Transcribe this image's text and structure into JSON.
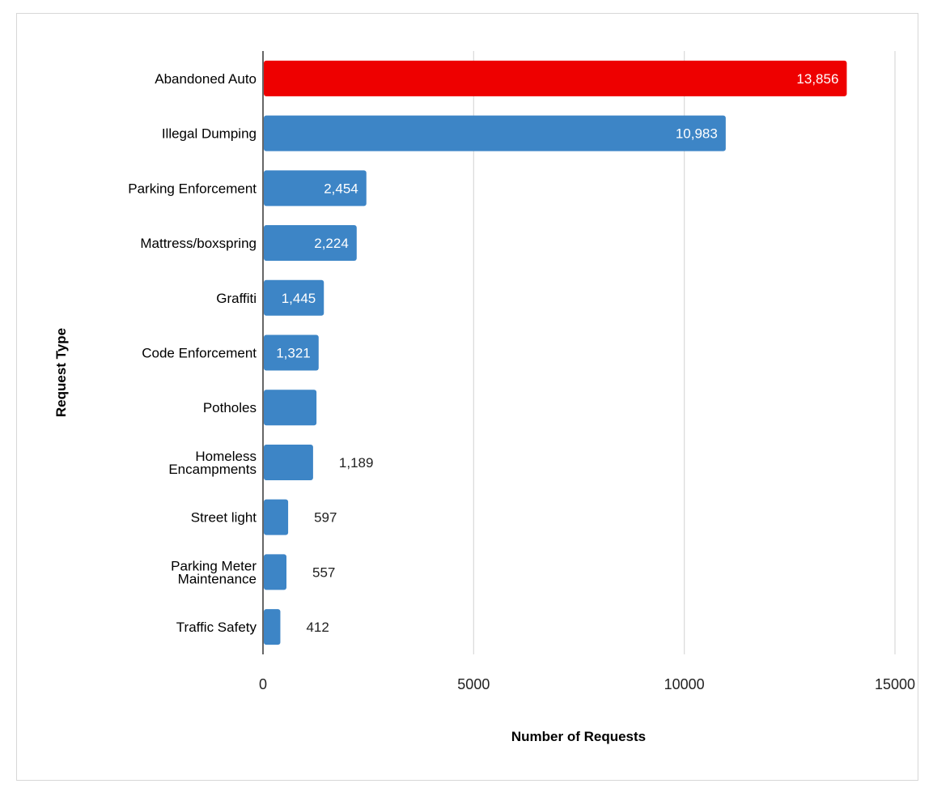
{
  "chart_data": {
    "type": "bar",
    "orientation": "horizontal",
    "xlabel": "Number of Requests",
    "ylabel": "Request Type",
    "xlim": [
      0,
      15000
    ],
    "xticks": [
      0,
      5000,
      10000,
      15000
    ],
    "grid": true,
    "legend": "none",
    "colors": {
      "default": "#3d85c6",
      "highlight": "#ee0000",
      "gridline": "#d9d9d9",
      "axis": "#333333"
    },
    "bars": [
      {
        "category": "Abandoned Auto",
        "value": 13856,
        "label": "13,856",
        "label_position": "inside",
        "highlight": true
      },
      {
        "category": "Illegal Dumping",
        "value": 10983,
        "label": "10,983",
        "label_position": "inside",
        "highlight": false
      },
      {
        "category": "Parking Enforcement",
        "value": 2454,
        "label": "2,454",
        "label_position": "inside",
        "highlight": false
      },
      {
        "category": "Mattress/boxspring",
        "value": 2224,
        "label": "2,224",
        "label_position": "inside",
        "highlight": false
      },
      {
        "category": "Graffiti",
        "value": 1445,
        "label": "1,445",
        "label_position": "inside",
        "highlight": false
      },
      {
        "category": "Code Enforcement",
        "value": 1321,
        "label": "1,321",
        "label_position": "inside",
        "highlight": false
      },
      {
        "category": "Potholes",
        "value": 1270,
        "label": "",
        "label_position": "none",
        "highlight": false
      },
      {
        "category": "Homeless\nEncampments",
        "value": 1189,
        "label": "1,189",
        "label_position": "outside",
        "highlight": false
      },
      {
        "category": "Street light",
        "value": 597,
        "label": "597",
        "label_position": "outside",
        "highlight": false
      },
      {
        "category": "Parking Meter\nMaintenance",
        "value": 557,
        "label": "557",
        "label_position": "outside",
        "highlight": false
      },
      {
        "category": "Traffic Safety",
        "value": 412,
        "label": "412",
        "label_position": "outside",
        "highlight": false
      }
    ]
  }
}
